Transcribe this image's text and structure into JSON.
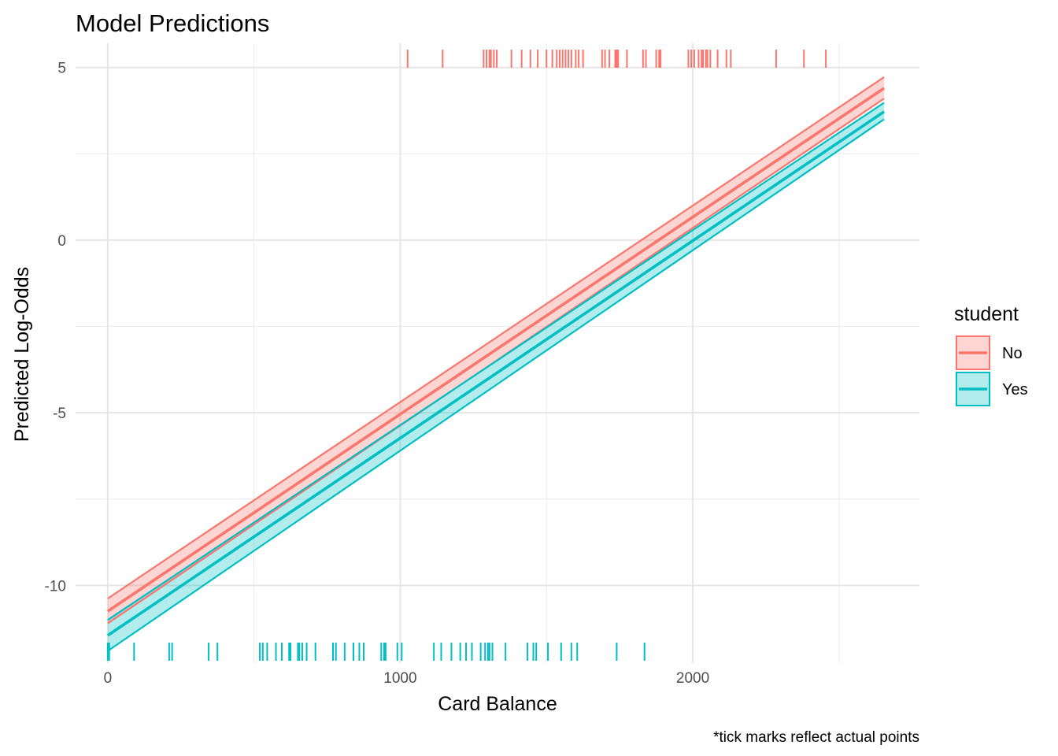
{
  "chart_data": {
    "type": "line",
    "title": "Model Predictions",
    "xlabel": "Card Balance",
    "ylabel": "Predicted Log-Odds",
    "caption": "*tick marks reflect actual points",
    "xlim": [
      -110,
      2775
    ],
    "ylim": [
      -12.25,
      5.7
    ],
    "x_ticks": [
      0,
      1000,
      2000
    ],
    "x_minor": [
      500,
      1500,
      2500
    ],
    "y_ticks": [
      5,
      0,
      -5,
      -10
    ],
    "y_minor": [
      2.5,
      -2.5,
      -7.5
    ],
    "y_tick_labels": [
      "5",
      "0",
      "-5",
      "-10"
    ],
    "x_tick_labels": [
      "0",
      "1000",
      "2000"
    ],
    "grid": true,
    "legend": {
      "title": "student",
      "position": "right"
    },
    "series": [
      {
        "name": "No",
        "color": "#F8766D",
        "fill": "#F8766D",
        "x": [
          0,
          2654
        ],
        "fit": [
          -10.75,
          4.4
        ],
        "lower": [
          -11.1,
          4.1
        ],
        "upper": [
          -10.38,
          4.72
        ],
        "rug_position": "top",
        "rug_x": [
          1025,
          1145,
          1285,
          1295,
          1305,
          1310,
          1320,
          1330,
          1380,
          1415,
          1445,
          1470,
          1500,
          1520,
          1535,
          1545,
          1555,
          1565,
          1575,
          1585,
          1600,
          1610,
          1625,
          1690,
          1700,
          1715,
          1735,
          1740,
          1745,
          1775,
          1830,
          1840,
          1875,
          1885,
          1890,
          1985,
          1995,
          2005,
          2020,
          2030,
          2035,
          2045,
          2050,
          2060,
          2085,
          2115,
          2130,
          2285,
          2380,
          2455
        ]
      },
      {
        "name": "Yes",
        "color": "#00BFC4",
        "fill": "#00BFC4",
        "x": [
          0,
          2654
        ],
        "fit": [
          -11.45,
          3.72
        ],
        "lower": [
          -11.9,
          3.5
        ],
        "upper": [
          -11.0,
          3.98
        ],
        "rug_position": "bottom",
        "rug_x": [
          0,
          5,
          90,
          210,
          220,
          345,
          375,
          520,
          530,
          545,
          575,
          595,
          620,
          625,
          650,
          655,
          665,
          680,
          710,
          770,
          780,
          810,
          840,
          860,
          875,
          935,
          945,
          950,
          990,
          1005,
          1115,
          1140,
          1175,
          1205,
          1225,
          1245,
          1275,
          1290,
          1300,
          1305,
          1315,
          1360,
          1435,
          1455,
          1465,
          1505,
          1550,
          1585,
          1605,
          1740,
          1835
        ]
      }
    ]
  }
}
